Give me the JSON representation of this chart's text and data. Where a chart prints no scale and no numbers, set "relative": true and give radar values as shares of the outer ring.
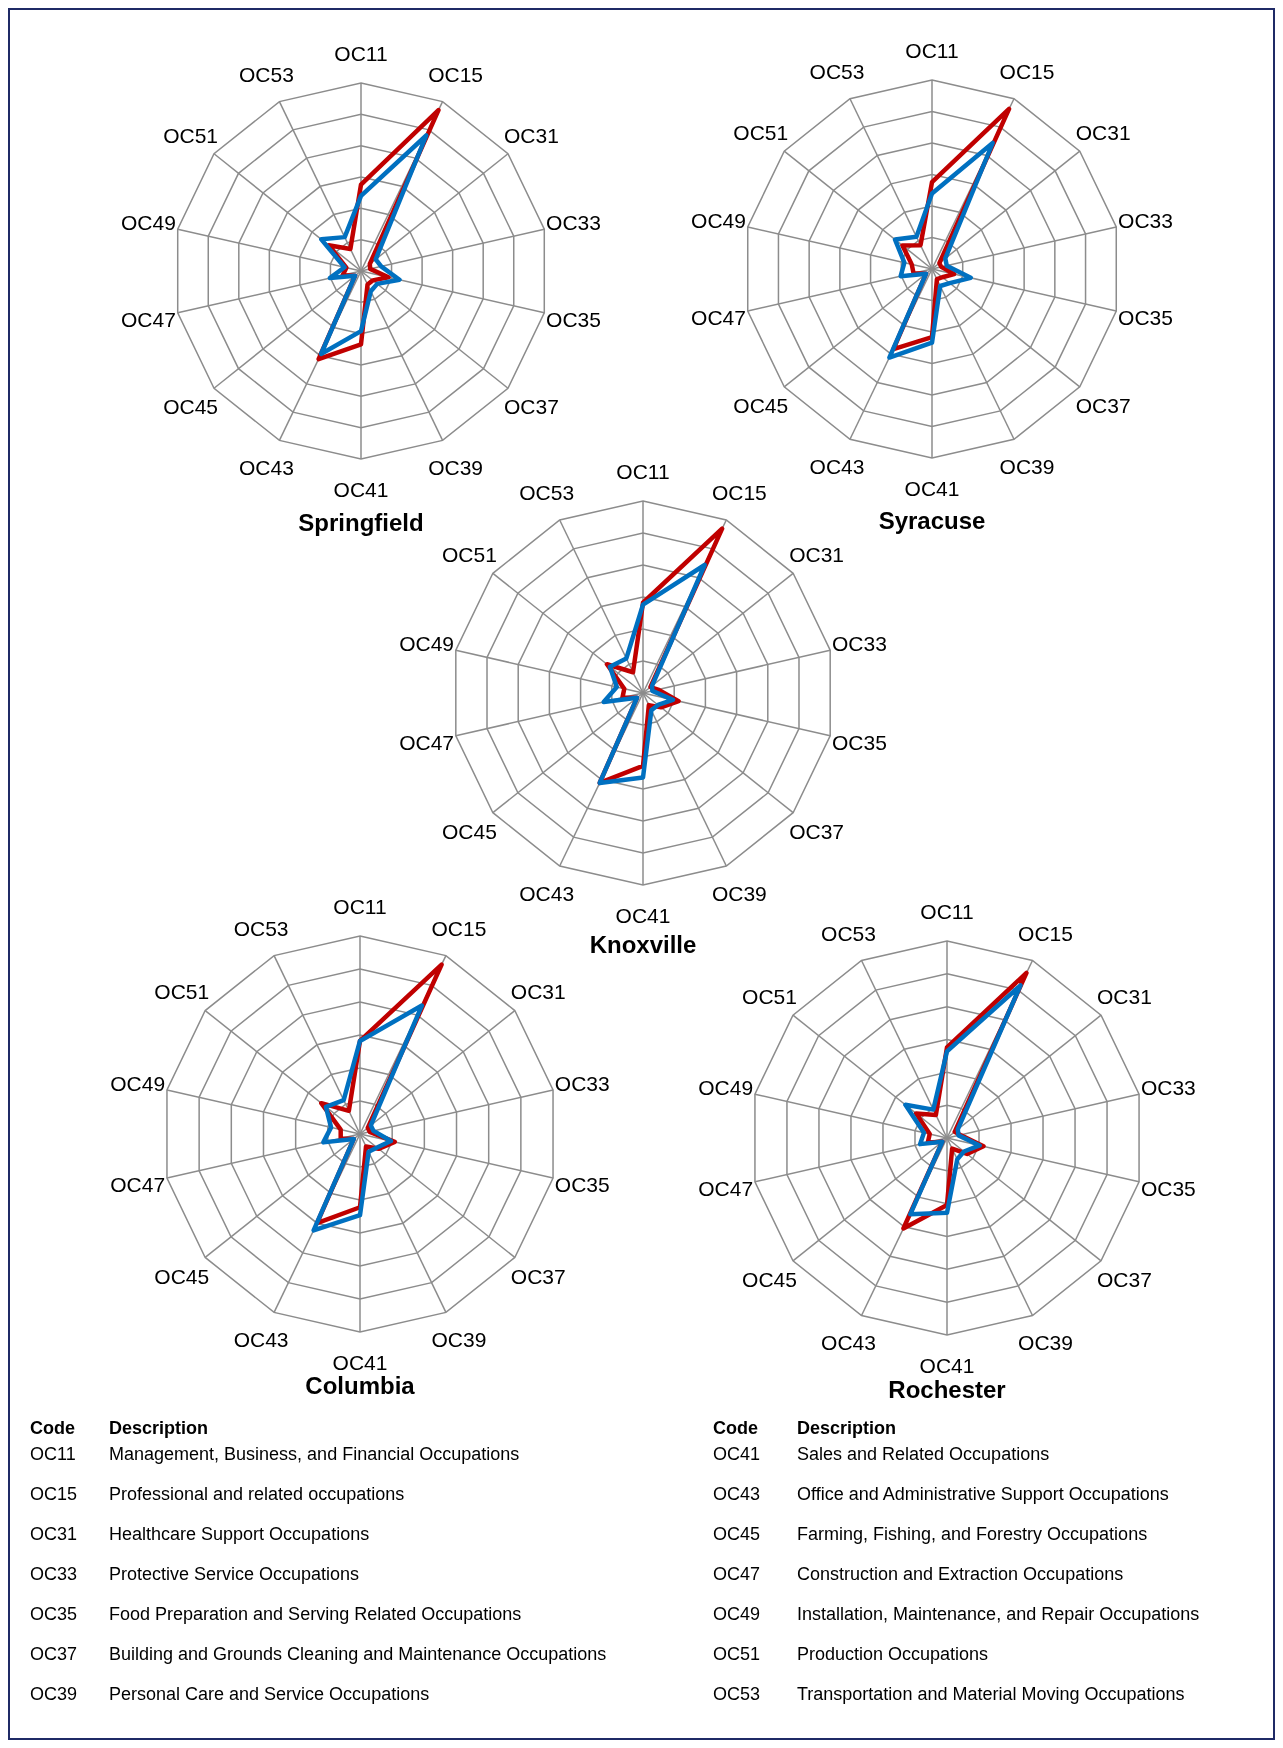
{
  "chart_data": [
    {
      "type": "radar",
      "title": "Springfield",
      "relative": true,
      "grid": true,
      "categories": [
        "OC11",
        "OC15",
        "OC31",
        "OC33",
        "OC35",
        "OC37",
        "OC39",
        "OC41",
        "OC43",
        "OC45",
        "OC47",
        "OC49",
        "OC51",
        "OC53"
      ],
      "series": [
        {
          "color": "#c00000",
          "values": [
            0.46,
            0.95,
            0.06,
            0.05,
            0.15,
            0.08,
            0.08,
            0.39,
            0.52,
            0.04,
            0.1,
            0.08,
            0.22,
            0.13
          ]
        },
        {
          "color": "#0070c0",
          "values": [
            0.4,
            0.8,
            0.1,
            0.11,
            0.21,
            0.11,
            0.12,
            0.32,
            0.49,
            0.04,
            0.17,
            0.09,
            0.27,
            0.2
          ]
        }
      ]
    },
    {
      "type": "radar",
      "title": "Syracuse",
      "relative": true,
      "grid": true,
      "categories": [
        "OC11",
        "OC15",
        "OC31",
        "OC33",
        "OC35",
        "OC37",
        "OC39",
        "OC41",
        "OC43",
        "OC45",
        "OC47",
        "OC49",
        "OC51",
        "OC53"
      ],
      "series": [
        {
          "color": "#c00000",
          "values": [
            0.46,
            0.94,
            0.05,
            0.05,
            0.12,
            0.07,
            0.06,
            0.36,
            0.47,
            0.04,
            0.1,
            0.11,
            0.2,
            0.14
          ]
        },
        {
          "color": "#0070c0",
          "values": [
            0.4,
            0.74,
            0.09,
            0.08,
            0.21,
            0.12,
            0.1,
            0.39,
            0.52,
            0.04,
            0.17,
            0.15,
            0.25,
            0.19
          ]
        }
      ]
    },
    {
      "type": "radar",
      "title": "Knoxville",
      "relative": true,
      "grid": true,
      "categories": [
        "OC11",
        "OC15",
        "OC31",
        "OC33",
        "OC35",
        "OC37",
        "OC39",
        "OC41",
        "OC43",
        "OC45",
        "OC47",
        "OC49",
        "OC51",
        "OC53"
      ],
      "series": [
        {
          "color": "#c00000",
          "values": [
            0.47,
            0.95,
            0.05,
            0.08,
            0.19,
            0.12,
            0.07,
            0.38,
            0.52,
            0.04,
            0.11,
            0.1,
            0.24,
            0.12
          ]
        },
        {
          "color": "#0070c0",
          "values": [
            0.46,
            0.74,
            0.06,
            0.05,
            0.16,
            0.1,
            0.1,
            0.44,
            0.52,
            0.04,
            0.21,
            0.14,
            0.22,
            0.2
          ]
        }
      ]
    },
    {
      "type": "radar",
      "title": "Columbia",
      "relative": true,
      "grid": true,
      "categories": [
        "OC11",
        "OC15",
        "OC31",
        "OC33",
        "OC35",
        "OC37",
        "OC39",
        "OC41",
        "OC43",
        "OC45",
        "OC47",
        "OC49",
        "OC51",
        "OC53"
      ],
      "series": [
        {
          "color": "#c00000",
          "values": [
            0.47,
            0.95,
            0.05,
            0.05,
            0.18,
            0.12,
            0.07,
            0.37,
            0.5,
            0.04,
            0.1,
            0.1,
            0.25,
            0.13
          ]
        },
        {
          "color": "#0070c0",
          "values": [
            0.47,
            0.72,
            0.07,
            0.07,
            0.16,
            0.11,
            0.1,
            0.41,
            0.54,
            0.04,
            0.19,
            0.15,
            0.22,
            0.19
          ]
        }
      ]
    },
    {
      "type": "radar",
      "title": "Rochester",
      "relative": true,
      "grid": true,
      "categories": [
        "OC11",
        "OC15",
        "OC31",
        "OC33",
        "OC35",
        "OC37",
        "OC39",
        "OC41",
        "OC43",
        "OC45",
        "OC47",
        "OC49",
        "OC51",
        "OC53"
      ],
      "series": [
        {
          "color": "#c00000",
          "values": [
            0.46,
            0.93,
            0.05,
            0.07,
            0.19,
            0.13,
            0.06,
            0.34,
            0.51,
            0.03,
            0.1,
            0.09,
            0.2,
            0.13
          ]
        },
        {
          "color": "#0070c0",
          "values": [
            0.44,
            0.86,
            0.07,
            0.06,
            0.17,
            0.11,
            0.12,
            0.38,
            0.43,
            0.03,
            0.14,
            0.12,
            0.27,
            0.16
          ]
        }
      ]
    },
    {
      "type": "other",
      "annotations": [
        "Code",
        "Description",
        "OC11",
        "Management, Business, and Financial Occupations",
        "OC15",
        "Professional and related occupations",
        "OC31",
        "Healthcare Support Occupations",
        "OC33",
        "Protective Service Occupations",
        "OC35",
        "Food Preparation and Serving Related Occupations",
        "OC37",
        "Building and Grounds Cleaning and Maintenance Occupations",
        "OC39",
        "Personal Care and Service Occupations",
        "Code",
        "Description",
        "OC41",
        "Sales and Related Occupations",
        "OC43",
        "Office and Administrative Support Occupations",
        "OC45",
        "Farming, Fishing, and Forestry Occupations",
        "OC47",
        "Construction and Extraction Occupations",
        "OC49",
        "Installation, Maintenance, and Repair Occupations",
        "OC51",
        "Production Occupations",
        "OC53",
        "Transportation and Material Moving Occupations"
      ]
    }
  ]
}
